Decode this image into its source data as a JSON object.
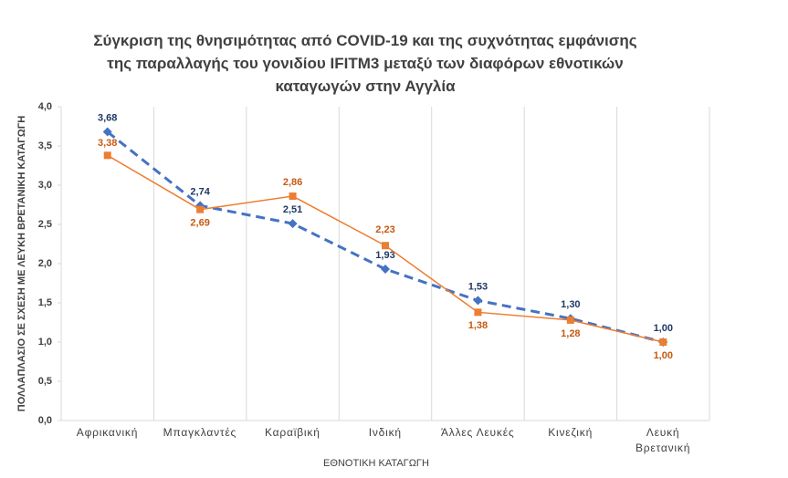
{
  "chart_data": {
    "type": "line",
    "title": "Σύγκριση της θνησιμότητας από COVID-19 και της συχνότητας εμφάνισης\nτης παραλλαγής του γονιδίου IFITM3 μεταξύ των διαφόρων εθνοτικών\nκαταγωγών στην Αγγλία",
    "x_label": "ΕΘΝΟΤΙΚΗ ΚΑΤΑΓΩΓΗ",
    "y_label": "ΠΟΛΛΑΠΛΑΣΙΟ ΣΕ ΣΧΕΣΗ ΜΕ ΛΕΥΚΗ ΒΡΕΤΑΝΙΚΗ ΚΑΤΑΓΩΓΗ",
    "categories": [
      "Αφρικανική",
      "Μπαγκλαντές",
      "Καραϊβική",
      "Ινδική",
      "Άλλες Λευκές",
      "Κινεζική",
      "Λευκή\nΒρετανική"
    ],
    "series": [
      {
        "color": "#4472c4",
        "dashed": true,
        "marker": "diamond",
        "values": [
          3.68,
          2.74,
          2.51,
          1.93,
          1.53,
          1.3,
          1.0
        ],
        "value_labels": [
          "3,68",
          "2,74",
          "2,51",
          "1,93",
          "1,53",
          "1,30",
          "1,00"
        ]
      },
      {
        "color": "#ed7d31",
        "dashed": false,
        "marker": "square",
        "values": [
          3.38,
          2.69,
          2.86,
          2.23,
          1.38,
          1.28,
          1.0
        ],
        "value_labels": [
          "3,38",
          "2,69",
          "2,86",
          "2,23",
          "1,38",
          "1,28",
          "1,00"
        ]
      }
    ],
    "ylim": [
      0,
      4
    ],
    "yticks": [
      {
        "value": 0,
        "label": "0,0"
      },
      {
        "value": 0.5,
        "label": "0,5"
      },
      {
        "value": 1,
        "label": "1,0"
      },
      {
        "value": 1.5,
        "label": "1,5"
      },
      {
        "value": 2,
        "label": "2,0"
      },
      {
        "value": 2.5,
        "label": "2,5"
      },
      {
        "value": 3,
        "label": "3,0"
      },
      {
        "value": 3.5,
        "label": "3,5"
      },
      {
        "value": 4,
        "label": "4,0"
      }
    ],
    "grid": true
  }
}
